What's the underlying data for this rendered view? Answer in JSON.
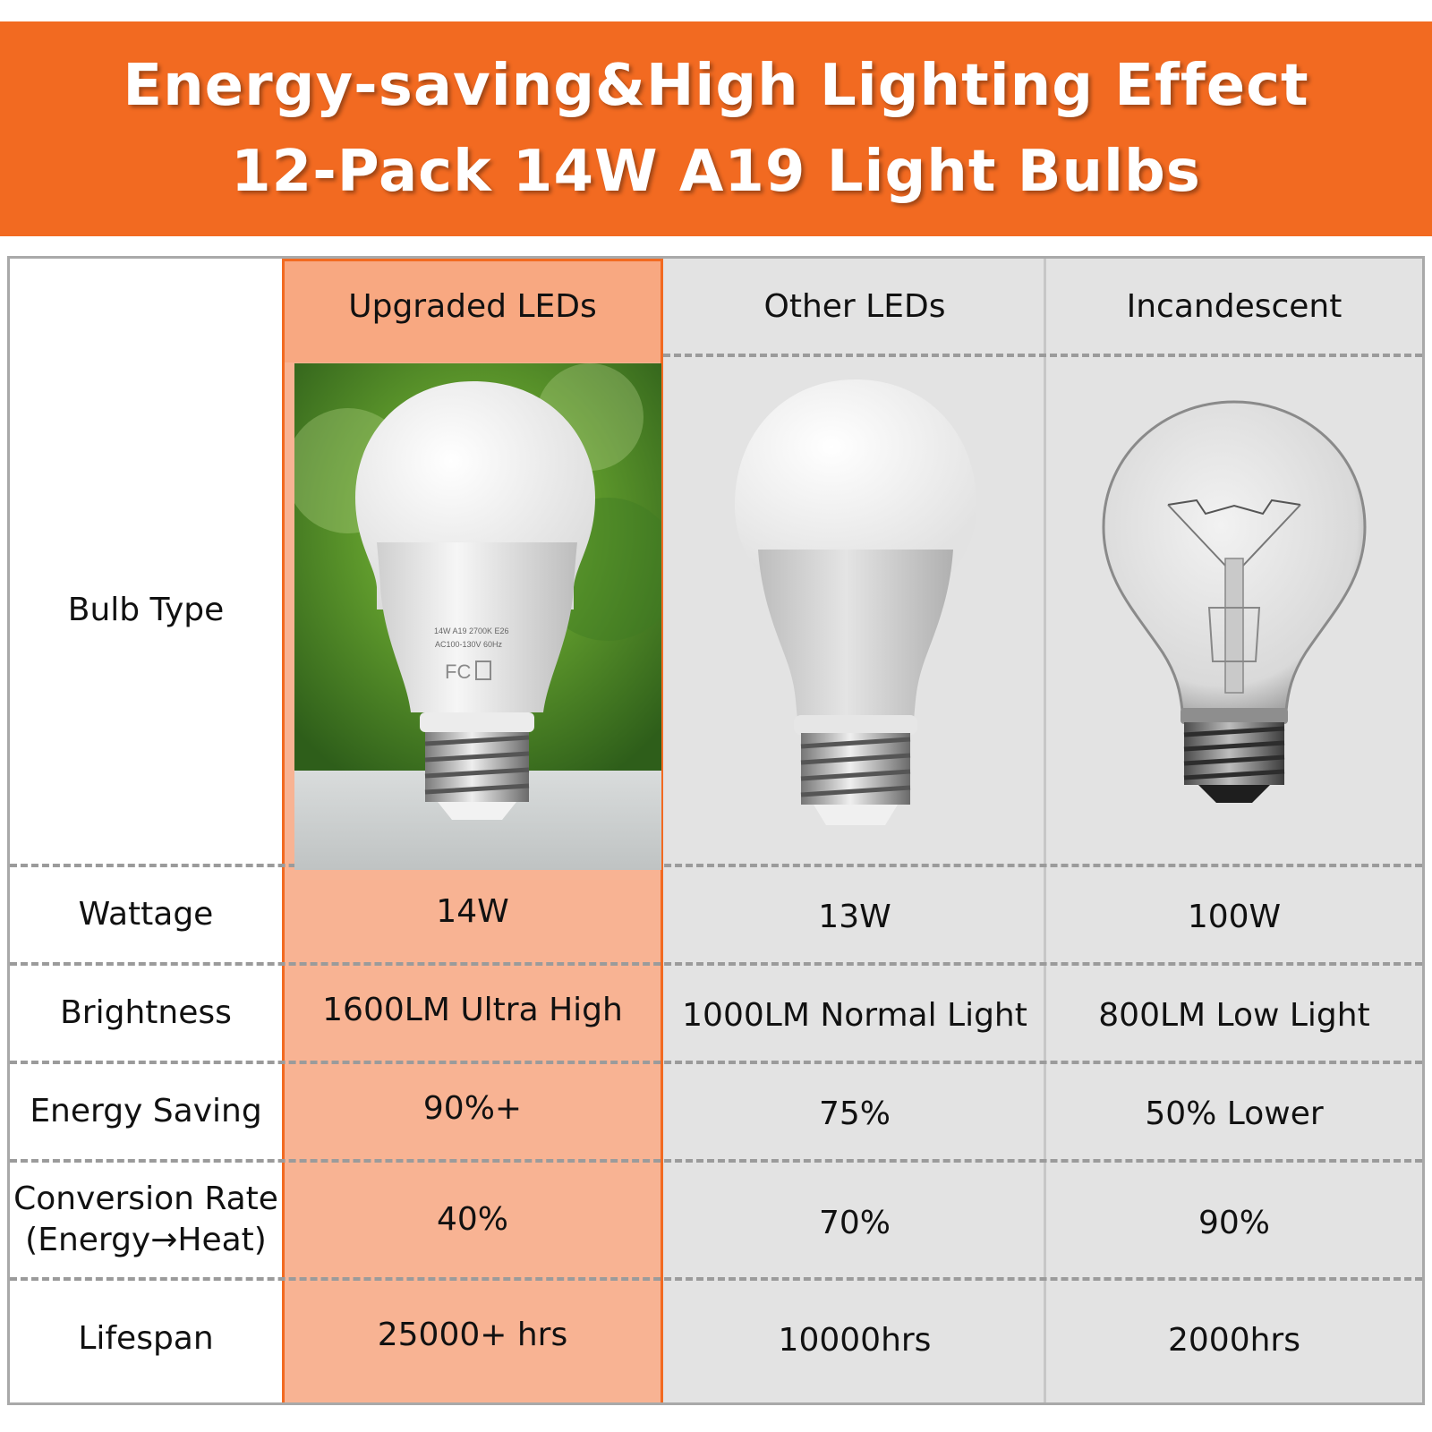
{
  "banner": {
    "line1": "Energy-saving&High Lighting Effect",
    "line2": "12-Pack 14W A19 Light Bulbs",
    "color": "#f26a21"
  },
  "columns": [
    "Upgraded LEDs",
    "Other LEDs",
    "Incandescent"
  ],
  "rows": [
    {
      "label": "Bulb Type",
      "values": [
        "",
        "",
        ""
      ]
    },
    {
      "label": "Wattage",
      "values": [
        "14W",
        "13W",
        "100W"
      ]
    },
    {
      "label": "Brightness",
      "values": [
        "1600LM Ultra High",
        "1000LM Normal Light",
        "800LM Low Light"
      ]
    },
    {
      "label": "Energy Saving",
      "values": [
        "90%+",
        "75%",
        "50% Lower"
      ]
    },
    {
      "label_line1": "Conversion Rate",
      "label_line2": "(Energy→Heat)",
      "values": [
        "40%",
        "70%",
        "90%"
      ]
    },
    {
      "label": "Lifespan",
      "values": [
        "25000+ hrs",
        "10000hrs",
        "2000hrs"
      ]
    }
  ],
  "bulb_print": {
    "line1": "14W A19 2700K E26",
    "line2": "AC100-130V 60Hz",
    "mark": "FC"
  },
  "highlight_colors": {
    "upgraded_bg": "#f8b393",
    "border": "#f26a21",
    "neutral_bg": "#e3e3e3"
  }
}
